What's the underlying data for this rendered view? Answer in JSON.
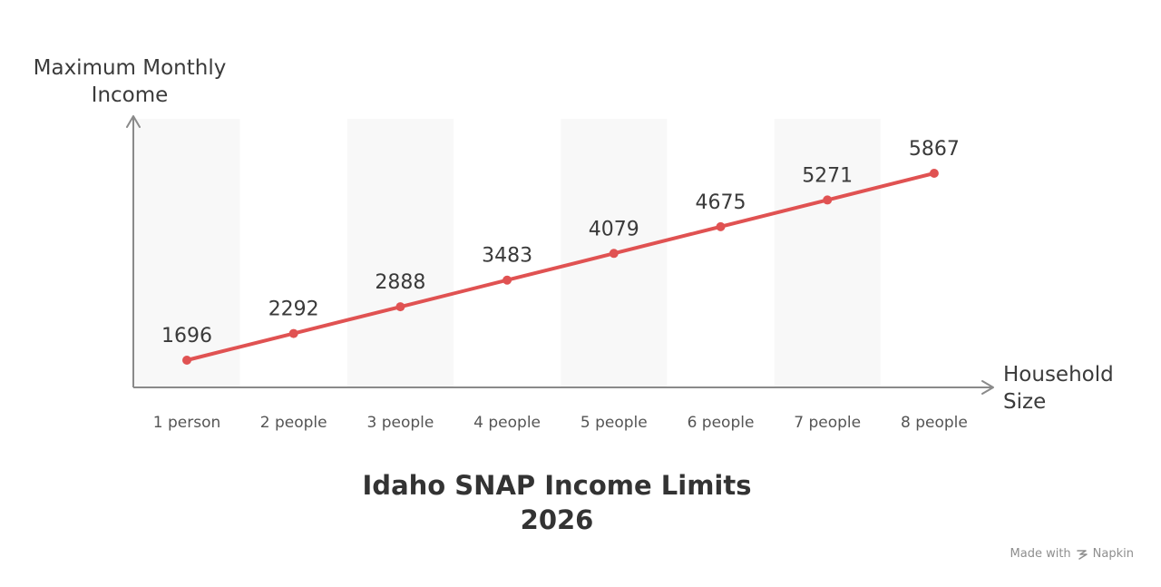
{
  "chart_data": {
    "type": "line",
    "title_lines": [
      "Idaho SNAP Income Limits",
      "2026"
    ],
    "ylabel_lines": [
      "Maximum Monthly",
      "Income"
    ],
    "xlabel_lines": [
      "Household",
      "Size"
    ],
    "categories": [
      "1 person",
      "2 people",
      "3 people",
      "4 people",
      "5 people",
      "6 people",
      "7 people",
      "8 people"
    ],
    "series": [
      {
        "values": [
          1696,
          2292,
          2888,
          3483,
          4079,
          4675,
          5271,
          5867
        ]
      }
    ],
    "data_labels": [
      "1696",
      "2292",
      "2888",
      "3483",
      "4079",
      "4675",
      "5271",
      "5867"
    ],
    "grid": false,
    "alternating_column_bands": true,
    "line_color": "#e05252",
    "band_color": "#f8f8f8",
    "axis_color": "#8a8a8a"
  },
  "footer": {
    "credit_prefix": "Made with",
    "credit_brand": "Napkin",
    "brand_icon": "napkin-logo-icon"
  }
}
